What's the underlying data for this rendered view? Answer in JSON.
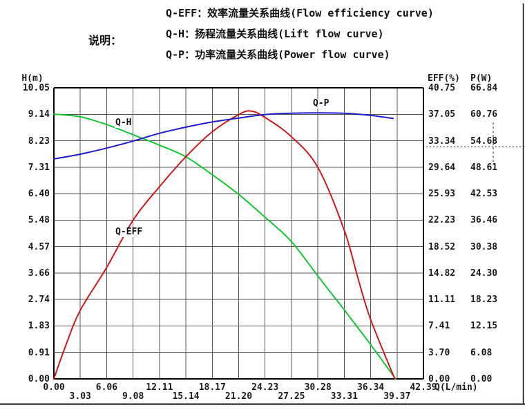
{
  "legend": {
    "title": "说明：",
    "items": [
      "Q-EFF：效率流量关系曲线(Flow efficiency curve)",
      "Q-H：扬程流量关系曲线(Lift flow curve)",
      "Q-P：功率流量关系曲线(Power flow curve)"
    ]
  },
  "axes": {
    "left": {
      "title": "H(m)",
      "ticks": [
        "10.05",
        "9.14",
        "8.23",
        "7.31",
        "6.40",
        "5.48",
        "4.57",
        "3.66",
        "2.74",
        "1.83",
        "0.91",
        "0.00"
      ]
    },
    "right_eff": {
      "title": "EFF(%)",
      "ticks": [
        "40.75",
        "37.05",
        "33.34",
        "29.64",
        "25.93",
        "22.23",
        "18.52",
        "14.82",
        "11.11",
        "7.41",
        "3.70",
        "0.00"
      ]
    },
    "right_p": {
      "title": "P(W)",
      "ticks": [
        "66.84",
        "60.76",
        "54.68",
        "48.61",
        "42.53",
        "36.46",
        "30.38",
        "24.30",
        "18.23",
        "12.15",
        "6.08",
        "0.00"
      ]
    },
    "x": {
      "title": "Q(L/min)",
      "ticks": [
        "0.00",
        "3.03",
        "6.06",
        "9.08",
        "12.11",
        "15.14",
        "18.17",
        "21.20",
        "24.23",
        "27.25",
        "30.28",
        "33.31",
        "36.34",
        "39.37",
        "42.39"
      ]
    }
  },
  "chart_data": {
    "type": "line",
    "title": "",
    "x_axis": {
      "label": "Q(L/min)",
      "min": 0,
      "max": 42.39
    },
    "y_axes": {
      "H": {
        "label": "H(m)",
        "min": 0,
        "max": 10.05
      },
      "EFF": {
        "label": "EFF(%)",
        "min": 0,
        "max": 40.75
      },
      "P": {
        "label": "P(W)",
        "min": 0,
        "max": 66.84
      }
    },
    "grid": {
      "x_divisions": 14,
      "y_divisions": 11,
      "color": "#565656",
      "frame_color": "#000000",
      "visible": true
    },
    "legend_position": "top",
    "series": [
      {
        "name": "Q-H",
        "axis": "H",
        "color": "#12c832",
        "points": [
          [
            0,
            9.14
          ],
          [
            3.03,
            9.05
          ],
          [
            6.06,
            8.78
          ],
          [
            9.08,
            8.43
          ],
          [
            12.11,
            8.07
          ],
          [
            15.14,
            7.67
          ],
          [
            18.17,
            7.05
          ],
          [
            21.2,
            6.37
          ],
          [
            24.23,
            5.58
          ],
          [
            27.25,
            4.74
          ],
          [
            30.28,
            3.55
          ],
          [
            33.31,
            2.38
          ],
          [
            36.34,
            1.18
          ],
          [
            39.2,
            0.0
          ]
        ]
      },
      {
        "name": "Q-EFF",
        "axis": "EFF",
        "color": "#d01818",
        "points": [
          [
            0,
            0.0
          ],
          [
            1.4,
            4.8
          ],
          [
            3.03,
            9.6
          ],
          [
            6.06,
            15.6
          ],
          [
            9.08,
            22.2
          ],
          [
            12.11,
            26.9
          ],
          [
            15.14,
            31.1
          ],
          [
            18.17,
            34.6
          ],
          [
            21.2,
            37.0
          ],
          [
            22.6,
            37.5
          ],
          [
            24.23,
            36.6
          ],
          [
            27.25,
            33.9
          ],
          [
            30.28,
            29.6
          ],
          [
            33.31,
            20.8
          ],
          [
            34.9,
            14.0
          ],
          [
            36.34,
            8.3
          ],
          [
            39.1,
            0.0
          ]
        ]
      },
      {
        "name": "Q-P",
        "axis": "P",
        "color": "#1c1ccd",
        "points": [
          [
            0,
            50.5
          ],
          [
            3.03,
            51.6
          ],
          [
            6.06,
            53.0
          ],
          [
            9.08,
            54.6
          ],
          [
            12.11,
            56.4
          ],
          [
            15.14,
            57.8
          ],
          [
            18.17,
            59.0
          ],
          [
            21.2,
            59.9
          ],
          [
            24.23,
            60.7
          ],
          [
            27.25,
            61.0
          ],
          [
            30.28,
            61.1
          ],
          [
            33.31,
            61.0
          ],
          [
            36.34,
            60.5
          ],
          [
            38.9,
            59.8
          ]
        ]
      }
    ],
    "annotation_marker": {
      "axis": "P",
      "value": 53.3,
      "style": "dotted-horizontal-with-dashed-vertical"
    }
  }
}
